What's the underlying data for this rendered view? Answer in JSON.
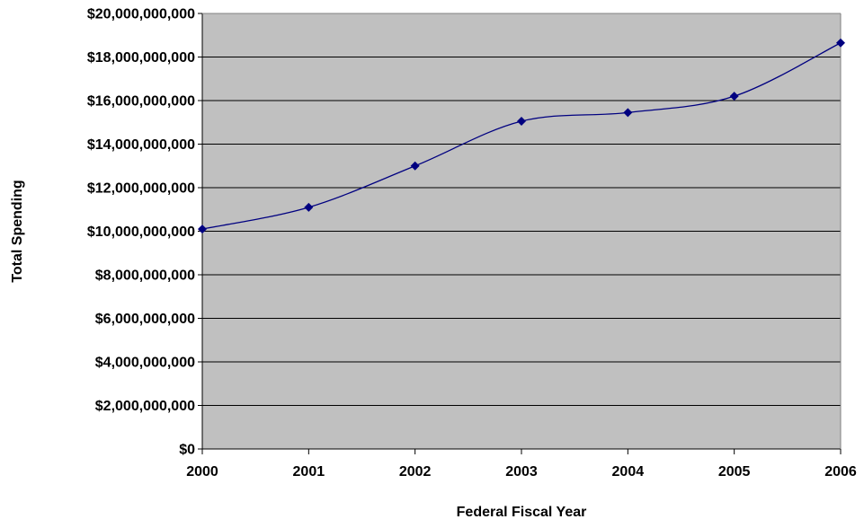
{
  "chart_data": {
    "type": "line",
    "title": "",
    "xlabel": "Federal Fiscal Year",
    "ylabel": "Total Spending",
    "categories": [
      "2000",
      "2001",
      "2002",
      "2003",
      "2004",
      "2005",
      "2006"
    ],
    "series": [
      {
        "values": [
          10100000000,
          11100000000,
          13000000000,
          15050000000,
          15450000000,
          16200000000,
          18650000000
        ]
      }
    ],
    "ylim": [
      0,
      20000000000
    ],
    "yticks": [
      0,
      2000000000,
      4000000000,
      6000000000,
      8000000000,
      10000000000,
      12000000000,
      14000000000,
      16000000000,
      18000000000,
      20000000000
    ],
    "ytick_labels": [
      "$0",
      "$2,000,000,000",
      "$4,000,000,000",
      "$6,000,000,000",
      "$8,000,000,000",
      "$10,000,000,000",
      "$12,000,000,000",
      "$14,000,000,000",
      "$16,000,000,000",
      "$18,000,000,000",
      "$20,000,000,000"
    ],
    "grid": true,
    "legend": "none",
    "colors": {
      "plot_background": "#c0c0c0",
      "line": "#000080",
      "marker": "#000080",
      "grid": "#000000"
    }
  }
}
